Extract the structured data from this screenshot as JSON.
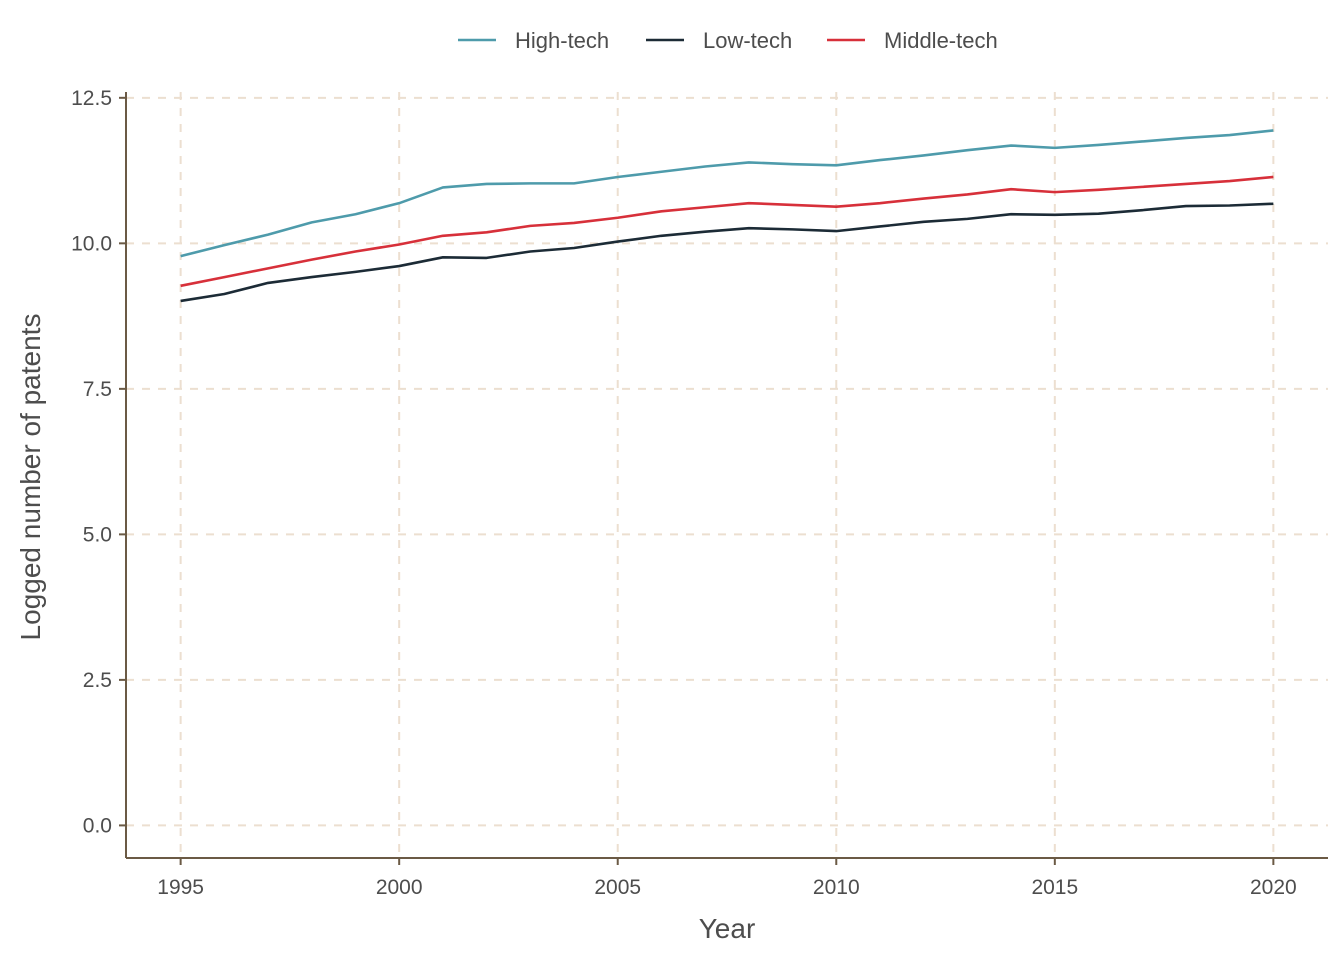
{
  "chart_data": {
    "type": "line",
    "title": "",
    "xlabel": "Year",
    "ylabel": "Logged number of patents",
    "xlim": [
      1993.75,
      2021.25
    ],
    "ylim": [
      -0.56,
      12.6
    ],
    "x_ticks": [
      1995,
      2000,
      2005,
      2010,
      2015,
      2020
    ],
    "y_ticks": [
      0,
      2.5,
      5,
      7.5,
      10,
      12.5
    ],
    "y_tick_labels": [
      "0.0",
      "2.5",
      "5.0",
      "7.5",
      "10.0",
      "12.5"
    ],
    "grid": true,
    "grid_style": "dashed",
    "legend_position": "top",
    "x": [
      1995,
      1996,
      1997,
      1998,
      1999,
      2000,
      2001,
      2002,
      2003,
      2004,
      2005,
      2006,
      2007,
      2008,
      2009,
      2010,
      2011,
      2012,
      2013,
      2014,
      2015,
      2016,
      2017,
      2018,
      2019,
      2020
    ],
    "series": [
      {
        "name": "High-tech",
        "color": "#4e9bab",
        "values": [
          9.78,
          9.97,
          10.15,
          10.36,
          10.5,
          10.69,
          10.96,
          11.02,
          11.03,
          11.03,
          11.14,
          11.23,
          11.32,
          11.39,
          11.36,
          11.34,
          11.43,
          11.51,
          11.6,
          11.68,
          11.64,
          11.69,
          11.75,
          11.81,
          11.86,
          11.94
        ]
      },
      {
        "name": "Low-tech",
        "color": "#1c2b36",
        "values": [
          9.01,
          9.13,
          9.32,
          9.42,
          9.51,
          9.61,
          9.76,
          9.75,
          9.86,
          9.92,
          10.03,
          10.13,
          10.2,
          10.26,
          10.24,
          10.21,
          10.29,
          10.37,
          10.42,
          10.5,
          10.49,
          10.51,
          10.57,
          10.64,
          10.65,
          10.68
        ]
      },
      {
        "name": "Middle-tech",
        "color": "#d7303a",
        "values": [
          9.27,
          9.42,
          9.57,
          9.72,
          9.86,
          9.98,
          10.13,
          10.19,
          10.3,
          10.35,
          10.44,
          10.55,
          10.62,
          10.69,
          10.66,
          10.63,
          10.69,
          10.77,
          10.84,
          10.93,
          10.88,
          10.92,
          10.97,
          11.02,
          11.07,
          11.14
        ]
      }
    ]
  },
  "style": {
    "grid_color": "#ecdfd0",
    "axis_color": "#6b5a45",
    "text_color": "#4d4d4d"
  }
}
